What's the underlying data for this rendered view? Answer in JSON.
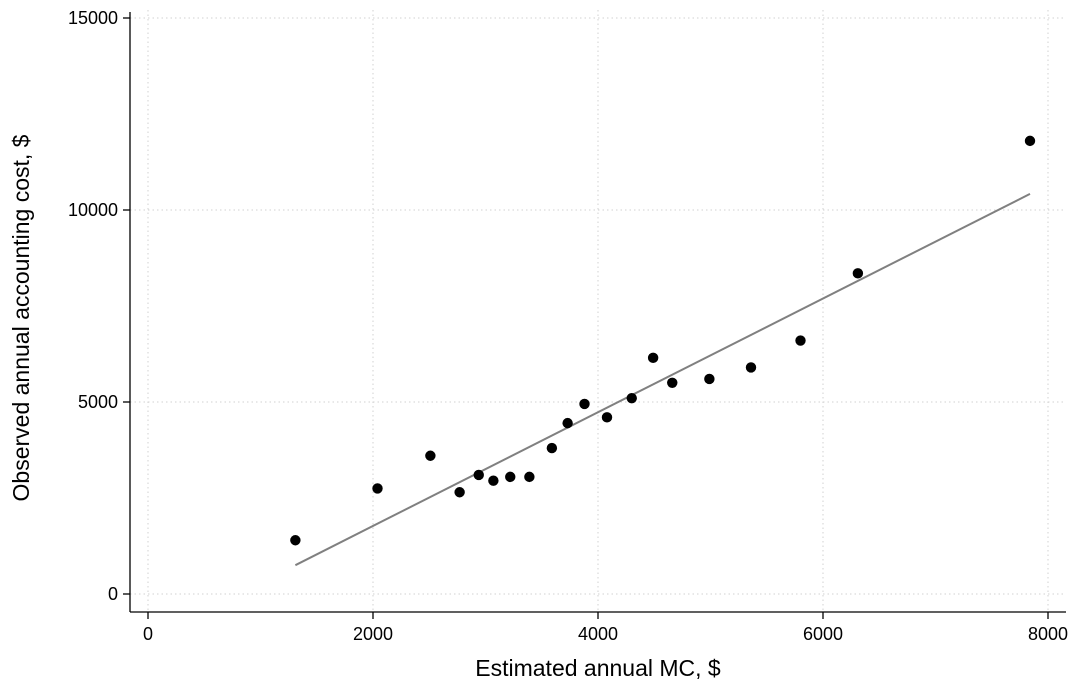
{
  "chart_data": {
    "type": "scatter",
    "title": "",
    "xlabel": "Estimated annual MC, $",
    "ylabel": "Observed annual accounting cost, $",
    "xlim": [
      0,
      8000
    ],
    "ylim": [
      0,
      15000
    ],
    "x_ticks": [
      0,
      2000,
      4000,
      6000,
      8000
    ],
    "y_ticks": [
      0,
      5000,
      10000,
      15000
    ],
    "x_tick_labels": [
      "0",
      "2000",
      "4000",
      "6000",
      "8000"
    ],
    "y_tick_labels": [
      "0",
      "5000",
      "10000",
      "15000"
    ],
    "grid": true,
    "legend": "none",
    "series": [
      {
        "type": "scatter",
        "color": "#000000",
        "points": [
          {
            "x": 1310,
            "y": 1400
          },
          {
            "x": 2040,
            "y": 2750
          },
          {
            "x": 2510,
            "y": 3600
          },
          {
            "x": 2770,
            "y": 2650
          },
          {
            "x": 2940,
            "y": 3100
          },
          {
            "x": 3070,
            "y": 2950
          },
          {
            "x": 3220,
            "y": 3050
          },
          {
            "x": 3390,
            "y": 3050
          },
          {
            "x": 3590,
            "y": 3800
          },
          {
            "x": 3730,
            "y": 4450
          },
          {
            "x": 3880,
            "y": 4950
          },
          {
            "x": 4080,
            "y": 4600
          },
          {
            "x": 4300,
            "y": 5100
          },
          {
            "x": 4490,
            "y": 6150
          },
          {
            "x": 4660,
            "y": 5500
          },
          {
            "x": 4990,
            "y": 5600
          },
          {
            "x": 5360,
            "y": 5900
          },
          {
            "x": 5800,
            "y": 6600
          },
          {
            "x": 6310,
            "y": 8350
          },
          {
            "x": 7840,
            "y": 11800
          }
        ]
      },
      {
        "type": "line",
        "color": "#808080",
        "points": [
          {
            "x": 1310,
            "y": 750
          },
          {
            "x": 7840,
            "y": 10420
          }
        ]
      }
    ]
  }
}
